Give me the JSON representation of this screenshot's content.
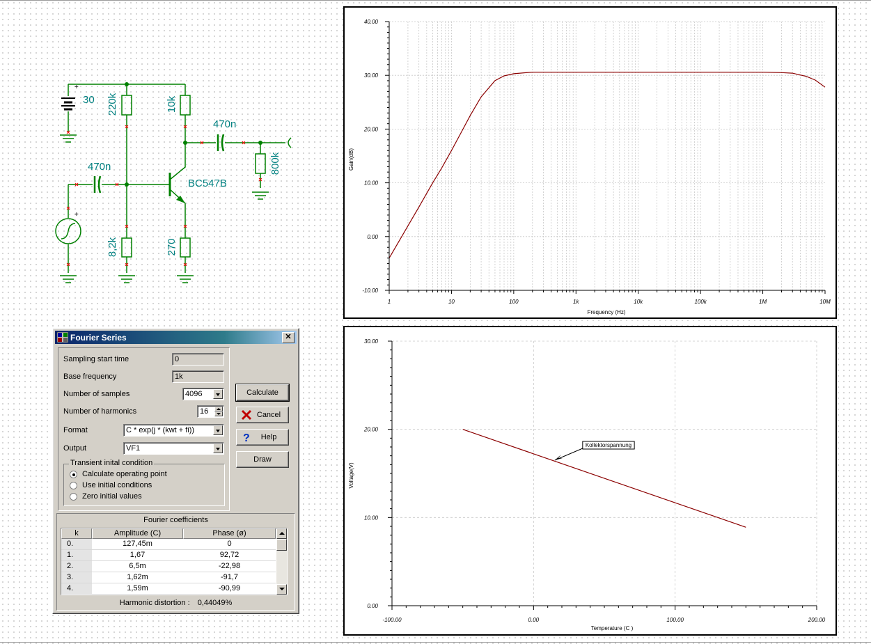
{
  "schematic": {
    "battery_label": "30",
    "r1_label": "220k",
    "r2_label": "10k",
    "c_out_label": "470n",
    "r_load_label": "800k",
    "c_in_label": "470n",
    "transistor_label": "BC547B",
    "r3_label": "8,2k",
    "r4_label": "270",
    "plus_sign": "+",
    "wire_color": "#008000",
    "text_color": "#008080",
    "node_marker_color": "#ff0000"
  },
  "dialog": {
    "title": "Fourier Series",
    "close_label": "✕",
    "fields": {
      "sampling_start_time": {
        "label": "Sampling start time",
        "value": "0"
      },
      "base_frequency": {
        "label": "Base frequency",
        "value": "1k"
      },
      "number_of_samples": {
        "label": "Number of samples",
        "value": "4096"
      },
      "number_of_harmonics": {
        "label": "Number of harmonics",
        "value": "16"
      },
      "format": {
        "label": "Format",
        "value": "C * exp(j * (kwt + fi))"
      },
      "output": {
        "label": "Output",
        "value": "VF1"
      }
    },
    "transient": {
      "legend": "Transient inital condition",
      "options": [
        {
          "label": "Calculate operating point",
          "checked": true
        },
        {
          "label": "Use initial conditions",
          "checked": false
        },
        {
          "label": "Zero initial values",
          "checked": false
        }
      ]
    },
    "buttons": {
      "calculate": "Calculate",
      "cancel": "Cancel",
      "help": "Help",
      "draw": "Draw"
    },
    "coefficients": {
      "title": "Fourier coefficients",
      "headers": [
        "k",
        "Amplitude (C)",
        "Phase (ø)"
      ],
      "rows": [
        [
          "0.",
          "127,45m",
          "0"
        ],
        [
          "1.",
          "1,67",
          "92,72"
        ],
        [
          "2.",
          "6,5m",
          "-22,98"
        ],
        [
          "3.",
          "1,62m",
          "-91,7"
        ],
        [
          "4.",
          "1,59m",
          "-90,99"
        ]
      ]
    },
    "distortion": {
      "label": "Harmonic distortion :",
      "value": "0,44049%"
    }
  },
  "chart_data": [
    {
      "type": "line",
      "xscale": "log",
      "xlabel": "Frequency (Hz)",
      "ylabel": "Gain(dB)",
      "xlim": [
        1,
        10000000
      ],
      "ylim": [
        -10,
        40
      ],
      "x_tick_labels": [
        "1",
        "10",
        "100",
        "1k",
        "10k",
        "100k",
        "1M",
        "10M"
      ],
      "y_tick_labels": [
        "-10.00",
        "0.00",
        "10.00",
        "20.00",
        "30.00",
        "40.00"
      ],
      "grid": true,
      "line_color": "#8b0000",
      "series": [
        {
          "x": [
            1,
            2,
            3,
            5,
            7,
            10,
            15,
            20,
            30,
            50,
            70,
            100,
            200,
            300,
            1000,
            10000,
            100000,
            1000000,
            2000000,
            3000000,
            5000000,
            7000000,
            10000000
          ],
          "y": [
            -4,
            2,
            5.5,
            10,
            12.8,
            16,
            19.8,
            22.5,
            26,
            29,
            29.9,
            30.3,
            30.6,
            30.6,
            30.6,
            30.6,
            30.6,
            30.6,
            30.5,
            30.4,
            29.8,
            29.1,
            27.8
          ]
        }
      ]
    },
    {
      "type": "line",
      "xlabel": "Temperature (C )",
      "ylabel": "Voltage(V)",
      "xlim": [
        -100,
        200
      ],
      "ylim": [
        0,
        30
      ],
      "x_tick_labels": [
        "-100.00",
        "0.00",
        "100.00",
        "200.00"
      ],
      "y_tick_labels": [
        "0.00",
        "10.00",
        "20.00",
        "30.00"
      ],
      "grid": true,
      "line_color": "#8b0000",
      "annotation": {
        "text": "Kollektorspannung",
        "x": 15,
        "y": 16.5
      },
      "series": [
        {
          "x": [
            -50,
            150
          ],
          "y": [
            20,
            8.9
          ]
        }
      ]
    }
  ]
}
